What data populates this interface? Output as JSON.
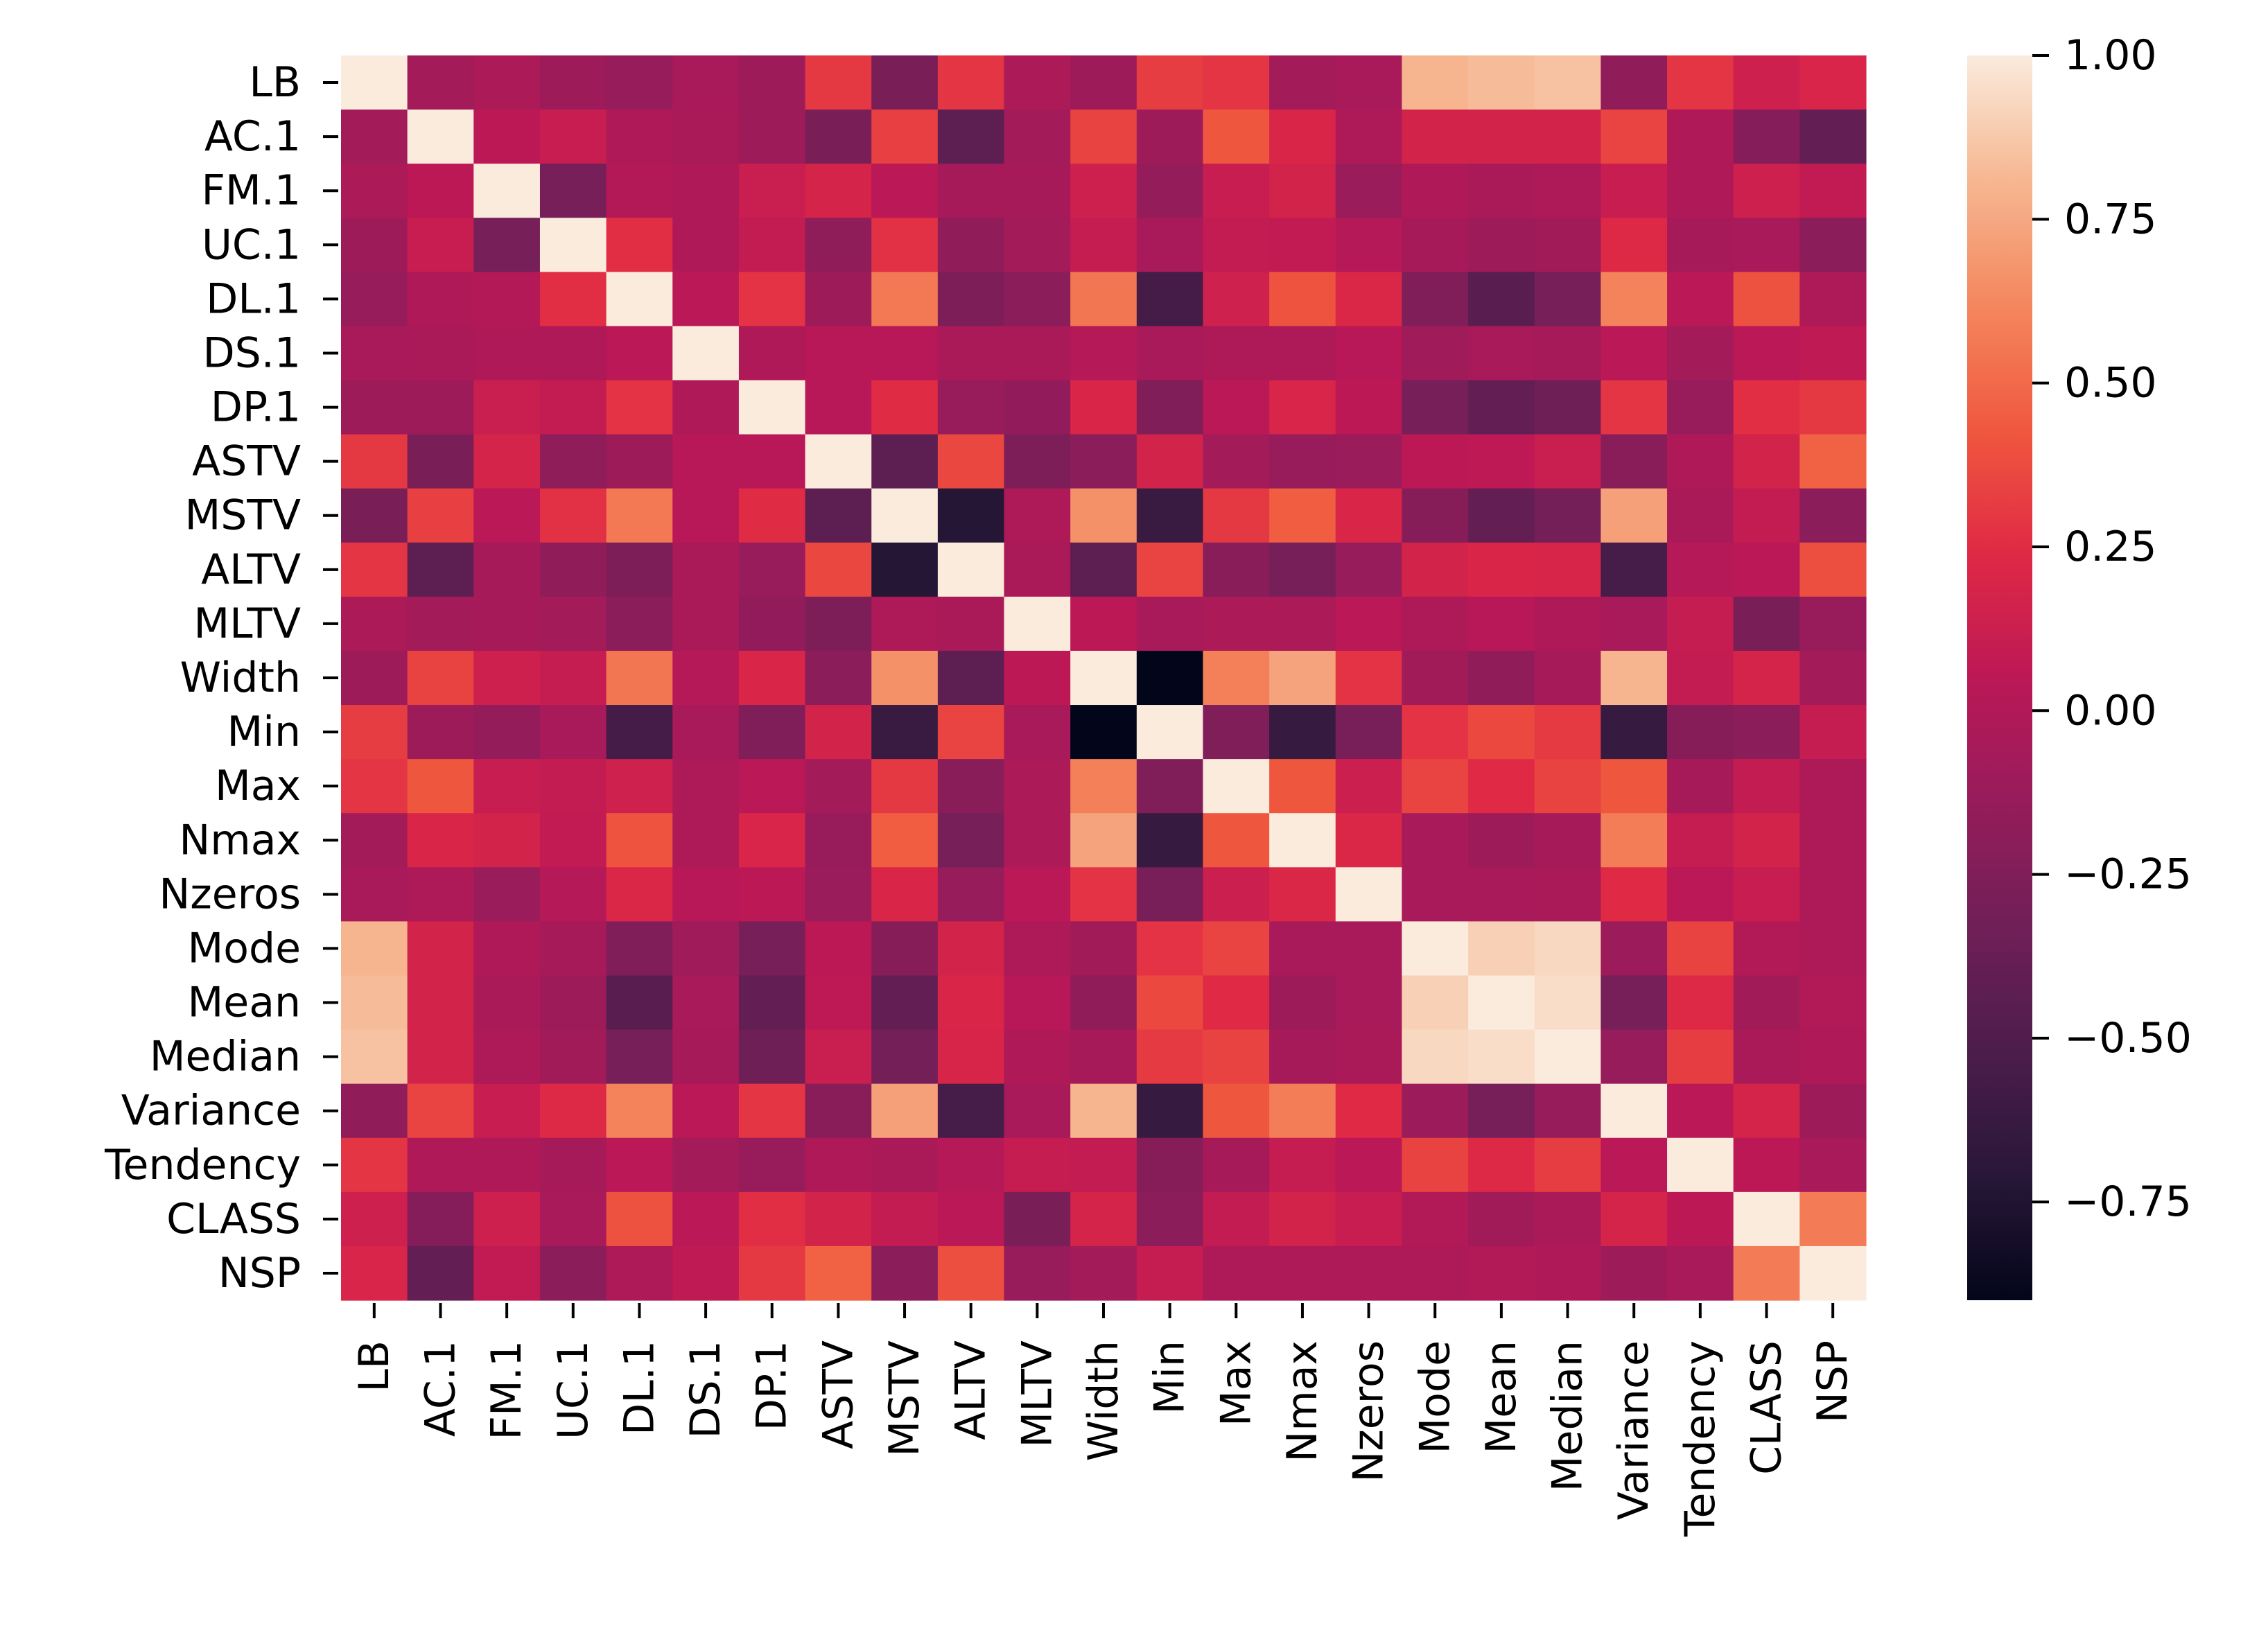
{
  "chart_data": {
    "type": "heatmap",
    "title": "",
    "xlabel": "",
    "ylabel": "",
    "labels": [
      "LB",
      "AC.1",
      "FM.1",
      "UC.1",
      "DL.1",
      "DS.1",
      "DP.1",
      "ASTV",
      "MSTV",
      "ALTV",
      "MLTV",
      "Width",
      "Min",
      "Max",
      "Nmax",
      "Nzeros",
      "Mode",
      "Mean",
      "Median",
      "Variance",
      "Tendency",
      "CLASS",
      "NSP"
    ],
    "value_range": [
      -0.9,
      1.0
    ],
    "colormap": "rocket",
    "colorbar": {
      "ticks": [
        -0.75,
        -0.5,
        -0.25,
        0.0,
        0.25,
        0.5,
        0.75,
        1.0
      ],
      "tick_labels": [
        "−0.75",
        "−0.50",
        "−0.25",
        "0.00",
        "0.25",
        "0.50",
        "0.75",
        "1.00"
      ]
    },
    "matrix": [
      [
        1.0,
        -0.07,
        -0.03,
        -0.1,
        -0.14,
        -0.05,
        -0.1,
        0.3,
        -0.28,
        0.29,
        -0.03,
        -0.1,
        0.32,
        0.29,
        -0.07,
        -0.05,
        0.8,
        0.83,
        0.85,
        -0.17,
        0.29,
        0.14,
        0.2
      ],
      [
        -0.07,
        1.0,
        0.05,
        0.11,
        -0.01,
        -0.04,
        -0.1,
        -0.28,
        0.33,
        -0.43,
        -0.07,
        0.34,
        -0.1,
        0.42,
        0.21,
        -0.02,
        0.17,
        0.17,
        0.17,
        0.35,
        -0.01,
        -0.23,
        -0.4
      ],
      [
        -0.03,
        0.05,
        1.0,
        -0.3,
        0.01,
        -0.01,
        0.12,
        0.18,
        0.04,
        -0.06,
        -0.06,
        0.14,
        -0.15,
        0.11,
        0.17,
        -0.12,
        -0.01,
        -0.04,
        -0.02,
        0.11,
        -0.01,
        0.14,
        0.08
      ],
      [
        -0.1,
        0.11,
        -0.3,
        1.0,
        0.26,
        -0.01,
        0.09,
        -0.18,
        0.27,
        -0.17,
        -0.07,
        0.1,
        -0.05,
        0.09,
        0.08,
        0.02,
        -0.06,
        -0.1,
        -0.08,
        0.23,
        -0.06,
        -0.05,
        -0.2
      ],
      [
        -0.14,
        -0.01,
        0.01,
        0.26,
        1.0,
        0.04,
        0.28,
        -0.1,
        0.56,
        -0.26,
        -0.2,
        0.55,
        -0.56,
        0.15,
        0.41,
        0.22,
        -0.25,
        -0.45,
        -0.3,
        0.6,
        0.04,
        0.4,
        -0.02
      ],
      [
        -0.05,
        -0.04,
        -0.01,
        -0.01,
        0.04,
        1.0,
        -0.01,
        0.03,
        0.03,
        -0.04,
        -0.04,
        0.02,
        -0.05,
        -0.02,
        -0.02,
        0.03,
        -0.09,
        -0.05,
        -0.06,
        0.04,
        -0.07,
        0.04,
        0.07
      ],
      [
        -0.1,
        -0.1,
        0.12,
        0.09,
        0.28,
        -0.01,
        1.0,
        0.03,
        0.25,
        -0.13,
        -0.16,
        0.21,
        -0.25,
        0.04,
        0.2,
        0.05,
        -0.3,
        -0.4,
        -0.34,
        0.29,
        -0.13,
        0.26,
        0.3
      ],
      [
        0.3,
        -0.28,
        0.18,
        -0.18,
        -0.1,
        0.03,
        0.03,
        1.0,
        -0.43,
        0.36,
        -0.26,
        -0.2,
        0.17,
        -0.07,
        -0.13,
        -0.12,
        0.05,
        0.06,
        0.12,
        -0.21,
        -0.01,
        0.17,
        0.47
      ],
      [
        -0.28,
        0.33,
        0.04,
        0.27,
        0.56,
        0.03,
        0.25,
        -0.43,
        1.0,
        -0.72,
        -0.02,
        0.66,
        -0.62,
        0.3,
        0.45,
        0.21,
        -0.22,
        -0.4,
        -0.31,
        0.72,
        -0.04,
        0.09,
        -0.2
      ],
      [
        0.29,
        -0.43,
        -0.06,
        -0.17,
        -0.26,
        -0.04,
        -0.13,
        0.36,
        -0.72,
        1.0,
        -0.04,
        -0.43,
        0.35,
        -0.21,
        -0.3,
        -0.14,
        0.17,
        0.21,
        0.19,
        -0.55,
        0.02,
        0.04,
        0.39
      ],
      [
        -0.03,
        -0.07,
        -0.06,
        -0.07,
        -0.2,
        -0.04,
        -0.16,
        -0.26,
        -0.02,
        -0.04,
        1.0,
        0.05,
        -0.05,
        -0.03,
        -0.03,
        0.04,
        -0.02,
        0.03,
        -0.01,
        -0.05,
        0.1,
        -0.28,
        -0.13
      ],
      [
        -0.1,
        0.34,
        0.14,
        0.1,
        0.55,
        0.02,
        0.21,
        -0.2,
        0.66,
        -0.43,
        0.05,
        1.0,
        -0.9,
        0.59,
        0.73,
        0.28,
        -0.08,
        -0.17,
        -0.06,
        0.8,
        0.09,
        0.18,
        -0.07
      ],
      [
        0.32,
        -0.1,
        -0.15,
        -0.05,
        -0.56,
        -0.05,
        -0.25,
        0.17,
        -0.62,
        0.35,
        -0.05,
        -0.9,
        1.0,
        -0.25,
        -0.63,
        -0.29,
        0.28,
        0.37,
        0.31,
        -0.63,
        -0.22,
        -0.2,
        0.1
      ],
      [
        0.29,
        0.42,
        0.11,
        0.09,
        0.15,
        -0.02,
        0.04,
        -0.07,
        0.3,
        -0.21,
        -0.03,
        0.59,
        -0.25,
        1.0,
        0.42,
        0.13,
        0.35,
        0.24,
        0.34,
        0.42,
        -0.06,
        0.09,
        -0.02
      ],
      [
        -0.07,
        0.21,
        0.17,
        0.08,
        0.41,
        -0.02,
        0.2,
        -0.13,
        0.45,
        -0.3,
        -0.03,
        0.73,
        -0.63,
        0.42,
        1.0,
        0.22,
        -0.05,
        -0.1,
        -0.06,
        0.58,
        0.1,
        0.17,
        -0.02
      ],
      [
        -0.05,
        -0.02,
        -0.12,
        0.02,
        0.22,
        0.03,
        0.05,
        -0.12,
        0.21,
        -0.14,
        0.04,
        0.28,
        -0.29,
        0.13,
        0.22,
        1.0,
        -0.05,
        -0.05,
        -0.04,
        0.24,
        0.04,
        0.11,
        -0.02
      ],
      [
        0.8,
        0.17,
        -0.01,
        -0.06,
        -0.25,
        -0.09,
        -0.3,
        0.05,
        -0.22,
        0.17,
        -0.02,
        -0.08,
        0.28,
        0.35,
        -0.05,
        -0.05,
        1.0,
        0.9,
        0.93,
        -0.11,
        0.34,
        0.0,
        -0.02
      ],
      [
        0.83,
        0.17,
        -0.04,
        -0.1,
        -0.45,
        -0.05,
        -0.4,
        0.06,
        -0.4,
        0.21,
        0.03,
        -0.17,
        0.37,
        0.24,
        -0.1,
        -0.05,
        0.9,
        1.0,
        0.95,
        -0.3,
        0.23,
        -0.08,
        0.0
      ],
      [
        0.85,
        0.17,
        -0.02,
        -0.08,
        -0.3,
        -0.06,
        -0.34,
        0.12,
        -0.31,
        0.19,
        -0.01,
        -0.06,
        0.31,
        0.34,
        -0.06,
        -0.04,
        0.93,
        0.95,
        1.0,
        -0.14,
        0.32,
        -0.04,
        -0.01
      ],
      [
        -0.17,
        0.35,
        0.11,
        0.23,
        0.6,
        0.04,
        0.29,
        -0.21,
        0.72,
        -0.55,
        -0.05,
        0.8,
        -0.63,
        0.42,
        0.58,
        0.24,
        -0.11,
        -0.3,
        -0.14,
        1.0,
        0.04,
        0.18,
        -0.1
      ],
      [
        0.29,
        -0.01,
        -0.01,
        -0.06,
        0.04,
        -0.07,
        -0.13,
        -0.01,
        -0.04,
        0.02,
        0.1,
        0.09,
        -0.22,
        -0.06,
        0.1,
        0.04,
        0.34,
        0.23,
        0.32,
        0.04,
        1.0,
        0.05,
        -0.05
      ],
      [
        0.14,
        -0.23,
        0.14,
        -0.05,
        0.4,
        0.04,
        0.26,
        0.17,
        0.09,
        0.04,
        -0.28,
        0.18,
        -0.2,
        0.09,
        0.17,
        0.11,
        0.0,
        -0.08,
        -0.04,
        0.18,
        0.05,
        1.0,
        0.57
      ],
      [
        0.2,
        -0.4,
        0.08,
        -0.2,
        -0.02,
        0.07,
        0.3,
        0.47,
        -0.2,
        0.39,
        -0.13,
        -0.07,
        0.1,
        -0.02,
        -0.02,
        -0.02,
        -0.02,
        0.0,
        -0.01,
        -0.1,
        -0.05,
        0.57,
        1.0
      ]
    ]
  }
}
